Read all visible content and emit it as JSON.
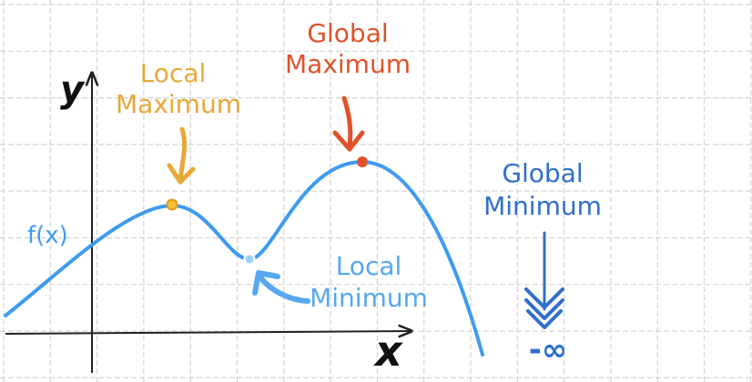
{
  "axes": {
    "x_label": "x",
    "y_label": "y"
  },
  "function_label": "f(x)",
  "annotations": {
    "local_maximum": {
      "line1": "Local",
      "line2": "Maximum",
      "color": "#E8A838"
    },
    "global_maximum": {
      "line1": "Global",
      "line2": "Maximum",
      "color": "#E0522A"
    },
    "local_minimum": {
      "line1": "Local",
      "line2": "Minimum",
      "color": "#56A8F0"
    },
    "global_minimum": {
      "line1": "Global",
      "line2": "Minimum",
      "value": "-∞",
      "color": "#2F6FC9"
    }
  },
  "colors": {
    "curve": "#3E9BEF",
    "grid": "#D4D4D4",
    "axis": "#222222",
    "function_label": "#3E9BEF",
    "local_max_point": "#F2C23A",
    "global_max_point": "#E0522A",
    "local_min_point": "#9ED0F5"
  }
}
